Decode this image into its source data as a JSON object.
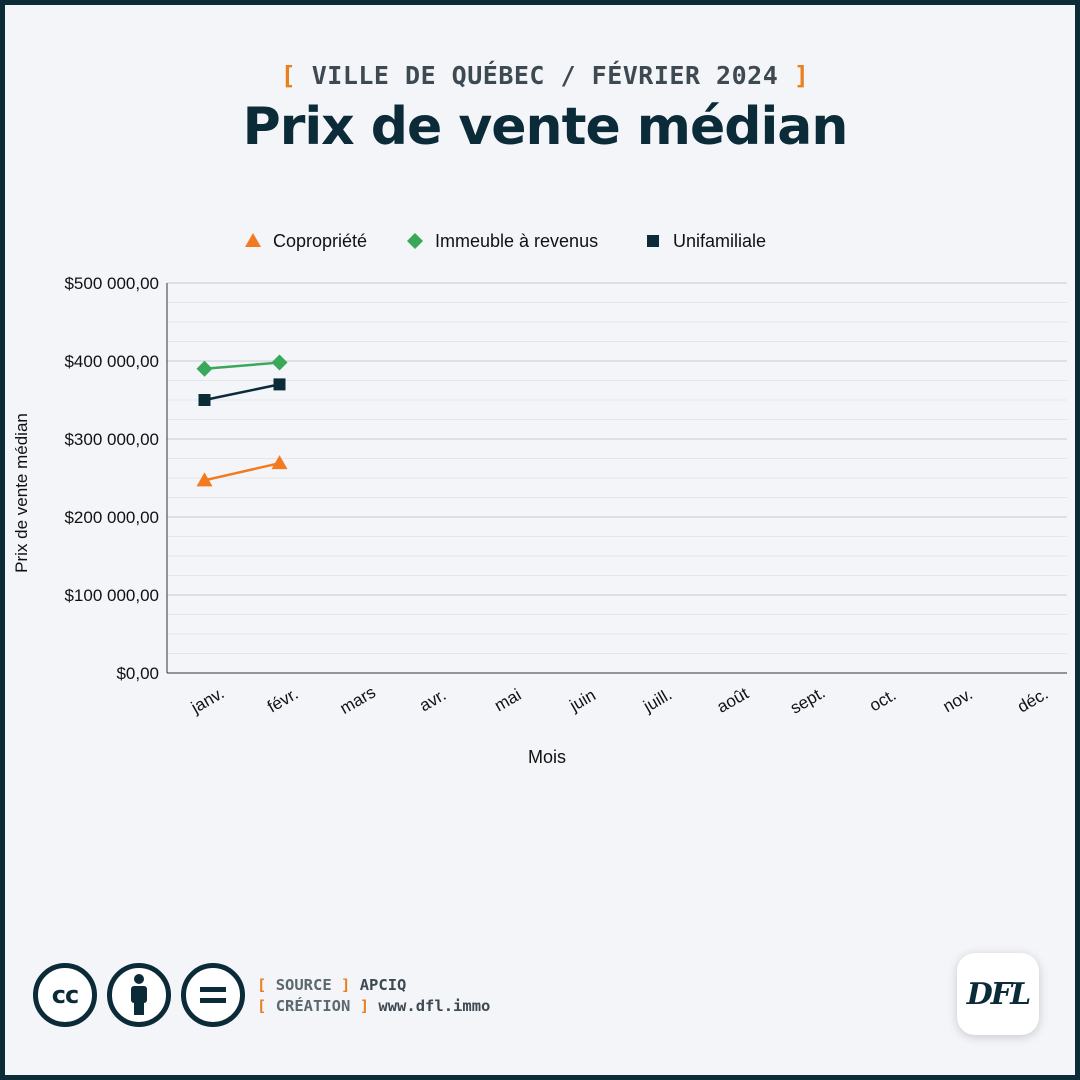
{
  "header": {
    "kicker": "VILLE DE QUÉBEC / FÉVRIER 2024",
    "bracket_open": "[",
    "bracket_close": "]",
    "title": "Prix de vente médian"
  },
  "colors": {
    "accent": "#e8801e",
    "dark": "#0b2b38",
    "background": "#f4f5f9",
    "copropriete": "#f47a1f",
    "immeuble": "#3aa85a",
    "unifamiliale": "#0b2b38"
  },
  "chart_data": {
    "type": "line",
    "title": "",
    "xlabel": "Mois",
    "ylabel": "Prix de vente médian",
    "categories": [
      "janv.",
      "févr.",
      "mars",
      "avr.",
      "mai",
      "juin",
      "juill.",
      "août",
      "sept.",
      "oct.",
      "nov.",
      "déc."
    ],
    "ylim": [
      0,
      500000
    ],
    "yticks": [
      0,
      100000,
      200000,
      300000,
      400000,
      500000
    ],
    "ytick_labels": [
      "$0,00",
      "$100 000,00",
      "$200 000,00",
      "$300 000,00",
      "$400 000,00",
      "$500 000,00"
    ],
    "legend_position": "top",
    "grid": true,
    "series": [
      {
        "name": "Copropriété",
        "marker": "triangle",
        "color": "#f47a1f",
        "values": [
          247000,
          269000,
          null,
          null,
          null,
          null,
          null,
          null,
          null,
          null,
          null,
          null
        ]
      },
      {
        "name": "Immeuble à revenus",
        "marker": "diamond",
        "color": "#3aa85a",
        "values": [
          390000,
          398000,
          null,
          null,
          null,
          null,
          null,
          null,
          null,
          null,
          null,
          null
        ]
      },
      {
        "name": "Unifamiliale",
        "marker": "square",
        "color": "#0b2b38",
        "values": [
          350000,
          370000,
          null,
          null,
          null,
          null,
          null,
          null,
          null,
          null,
          null,
          null
        ]
      }
    ]
  },
  "footer": {
    "cc_icons": [
      "cc-icon",
      "by-icon",
      "nd-icon"
    ],
    "cc_label": "cc",
    "source_key": "SOURCE",
    "source_value": "APCIQ",
    "creation_key": "CRÉATION",
    "creation_value": "www.dfl.immo",
    "logo_text": "DFL"
  }
}
